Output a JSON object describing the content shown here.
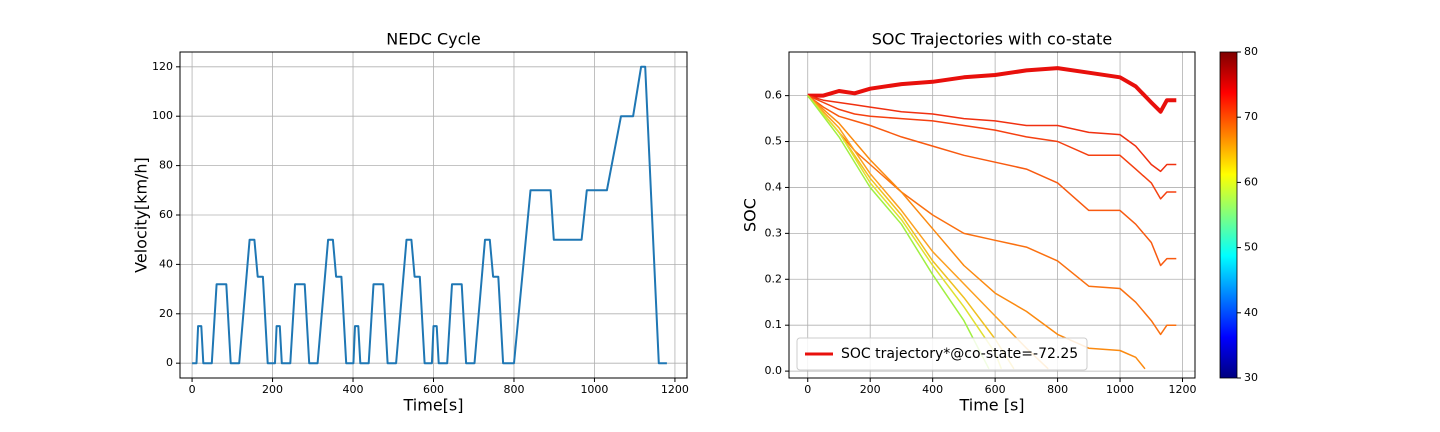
{
  "chart_data": [
    {
      "type": "line",
      "title": "NEDC Cycle",
      "xlabel": "Time[s]",
      "ylabel": "Velocity[km/h]",
      "color": "#1f77b4",
      "grid": true,
      "x": [
        0,
        11,
        15,
        23,
        28,
        49,
        61,
        85,
        96,
        117,
        143,
        155,
        163,
        176,
        188,
        195,
        206,
        210,
        218,
        223,
        244,
        256,
        280,
        291,
        312,
        338,
        350,
        358,
        371,
        383,
        390,
        401,
        405,
        413,
        418,
        439,
        451,
        475,
        486,
        507,
        533,
        545,
        553,
        566,
        578,
        585,
        596,
        600,
        608,
        613,
        634,
        646,
        670,
        681,
        702,
        728,
        740,
        748,
        761,
        773,
        780,
        800,
        841,
        891,
        899,
        968,
        981,
        1031,
        1066,
        1096,
        1116,
        1126,
        1160,
        1180
      ],
      "values": [
        0,
        0,
        15,
        15,
        0,
        0,
        32,
        32,
        0,
        0,
        50,
        50,
        35,
        35,
        0,
        0,
        0,
        15,
        15,
        0,
        0,
        32,
        32,
        0,
        0,
        50,
        50,
        35,
        35,
        0,
        0,
        0,
        15,
        15,
        0,
        0,
        32,
        32,
        0,
        0,
        50,
        50,
        35,
        35,
        0,
        0,
        0,
        15,
        15,
        0,
        0,
        32,
        32,
        0,
        0,
        50,
        50,
        35,
        35,
        0,
        0,
        0,
        70,
        70,
        50,
        50,
        70,
        70,
        100,
        100,
        120,
        120,
        0,
        0
      ],
      "xlim": [
        -30,
        1230
      ],
      "xticks": [
        0,
        200,
        400,
        600,
        800,
        1000,
        1200
      ],
      "ylim": [
        -6,
        126
      ],
      "yticks": [
        0,
        20,
        40,
        60,
        80,
        100,
        120
      ]
    },
    {
      "type": "line",
      "title": "SOC Trajectories with co-state",
      "xlabel": "Time [s]",
      "ylabel": "SOC",
      "grid": true,
      "legend": "lower left",
      "xlim": [
        -60,
        1240
      ],
      "xticks": [
        0,
        200,
        400,
        600,
        800,
        1000,
        1200
      ],
      "ylim": [
        -0.015,
        0.695
      ],
      "yticks": [
        {
          "value": 0,
          "label": "0.0"
        },
        0.1,
        0.2,
        0.3,
        0.4,
        0.5,
        0.6
      ],
      "colorbar": {
        "colormap": "jet",
        "lim": [
          30,
          80
        ],
        "ticks": [
          30,
          40,
          50,
          60,
          70,
          80
        ]
      },
      "series": [
        {
          "name": "SOC trajectory*@co-state=-72.25",
          "color": "#e8100c",
          "width": 4,
          "x": [
            0,
            50,
            100,
            150,
            200,
            300,
            400,
            500,
            600,
            700,
            800,
            900,
            1000,
            1050,
            1100,
            1130,
            1150,
            1180
          ],
          "values": [
            0.6,
            0.6,
            0.61,
            0.605,
            0.615,
            0.625,
            0.63,
            0.64,
            0.645,
            0.655,
            0.66,
            0.65,
            0.64,
            0.62,
            0.585,
            0.565,
            0.59,
            0.59
          ]
        },
        {
          "color": "#f03010",
          "x": [
            0,
            50,
            100,
            150,
            200,
            300,
            400,
            500,
            600,
            700,
            800,
            900,
            1000,
            1050,
            1100,
            1130,
            1150,
            1180
          ],
          "values": [
            0.6,
            0.59,
            0.585,
            0.58,
            0.575,
            0.565,
            0.56,
            0.55,
            0.545,
            0.535,
            0.535,
            0.52,
            0.515,
            0.49,
            0.45,
            0.435,
            0.45,
            0.45
          ]
        },
        {
          "color": "#f54010",
          "x": [
            0,
            50,
            100,
            150,
            200,
            300,
            400,
            500,
            600,
            700,
            800,
            900,
            1000,
            1050,
            1100,
            1130,
            1150,
            1180
          ],
          "values": [
            0.6,
            0.585,
            0.57,
            0.56,
            0.555,
            0.55,
            0.545,
            0.535,
            0.525,
            0.51,
            0.5,
            0.47,
            0.47,
            0.44,
            0.41,
            0.375,
            0.39,
            0.39
          ]
        },
        {
          "color": "#f85a10",
          "x": [
            0,
            50,
            100,
            150,
            200,
            300,
            400,
            500,
            600,
            700,
            800,
            900,
            1000,
            1050,
            1100,
            1130,
            1150,
            1180
          ],
          "values": [
            0.6,
            0.575,
            0.555,
            0.545,
            0.535,
            0.51,
            0.49,
            0.47,
            0.455,
            0.44,
            0.41,
            0.35,
            0.35,
            0.32,
            0.28,
            0.23,
            0.245,
            0.245
          ]
        },
        {
          "color": "#fa7010",
          "x": [
            0,
            50,
            100,
            150,
            200,
            300,
            400,
            500,
            600,
            700,
            800,
            900,
            1000,
            1050,
            1100,
            1130,
            1150,
            1180
          ],
          "values": [
            0.6,
            0.56,
            0.52,
            0.48,
            0.45,
            0.39,
            0.34,
            0.3,
            0.285,
            0.27,
            0.24,
            0.185,
            0.18,
            0.15,
            0.11,
            0.08,
            0.1,
            0.1
          ]
        },
        {
          "color": "#fb8a10",
          "x": [
            0,
            100,
            200,
            300,
            400,
            500,
            600,
            700,
            800,
            900,
            1000,
            1050,
            1080
          ],
          "values": [
            0.6,
            0.54,
            0.46,
            0.39,
            0.31,
            0.23,
            0.17,
            0.13,
            0.08,
            0.05,
            0.045,
            0.03,
            0.005
          ]
        },
        {
          "color": "#fca020",
          "x": [
            0,
            100,
            200,
            300,
            400,
            500,
            600,
            700,
            770
          ],
          "values": [
            0.6,
            0.53,
            0.43,
            0.35,
            0.26,
            0.19,
            0.12,
            0.05,
            0.005
          ]
        },
        {
          "color": "#f0c020",
          "x": [
            0,
            100,
            200,
            300,
            400,
            500,
            600,
            660
          ],
          "values": [
            0.6,
            0.52,
            0.42,
            0.34,
            0.24,
            0.16,
            0.07,
            0.005
          ]
        },
        {
          "color": "#e0e030",
          "x": [
            0,
            100,
            200,
            300,
            400,
            500,
            600,
            620
          ],
          "values": [
            0.6,
            0.52,
            0.41,
            0.33,
            0.23,
            0.14,
            0.04,
            0.005
          ]
        },
        {
          "color": "#a0f040",
          "x": [
            0,
            100,
            200,
            300,
            400,
            500,
            580
          ],
          "values": [
            0.6,
            0.51,
            0.4,
            0.32,
            0.21,
            0.11,
            0.005
          ]
        }
      ]
    }
  ]
}
